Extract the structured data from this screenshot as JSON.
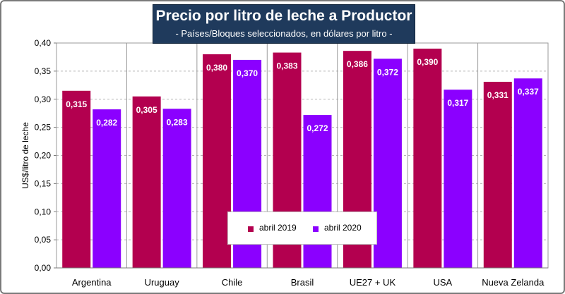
{
  "header": {
    "title": "Precio por litro de leche a Productor",
    "subtitle": "- Países/Bloques seleccionados, en dólares por litro -"
  },
  "colors": {
    "series_2019": "#b3004f",
    "series_2020": "#8b00ff",
    "title_bg": "#1f3a5c"
  },
  "chart_data": {
    "type": "bar",
    "title": "Precio por litro de leche a Productor",
    "subtitle": "- Países/Bloques seleccionados, en dólares por litro -",
    "xlabel": "",
    "ylabel": "US$/litro de leche",
    "ylim": [
      0,
      0.4
    ],
    "yticks": [
      "0,00",
      "0,05",
      "0,10",
      "0,15",
      "0,20",
      "0,25",
      "0,30",
      "0,35",
      "0,40"
    ],
    "categories": [
      "Argentina",
      "Uruguay",
      "Chile",
      "Brasil",
      "UE27 + UK",
      "USA",
      "Nueva Zelanda"
    ],
    "series": [
      {
        "name": "abril 2019",
        "values": [
          0.315,
          0.305,
          0.38,
          0.383,
          0.386,
          0.39,
          0.331
        ],
        "labels": [
          "0,315",
          "0,305",
          "0,380",
          "0,383",
          "0,386",
          "0,390",
          "0,331"
        ]
      },
      {
        "name": "abril 2020",
        "values": [
          0.282,
          0.283,
          0.37,
          0.272,
          0.372,
          0.317,
          0.337
        ],
        "labels": [
          "0,282",
          "0,283",
          "0,370",
          "0,272",
          "0,372",
          "0,317",
          "0,337"
        ]
      }
    ],
    "legend": "bottom-center"
  }
}
